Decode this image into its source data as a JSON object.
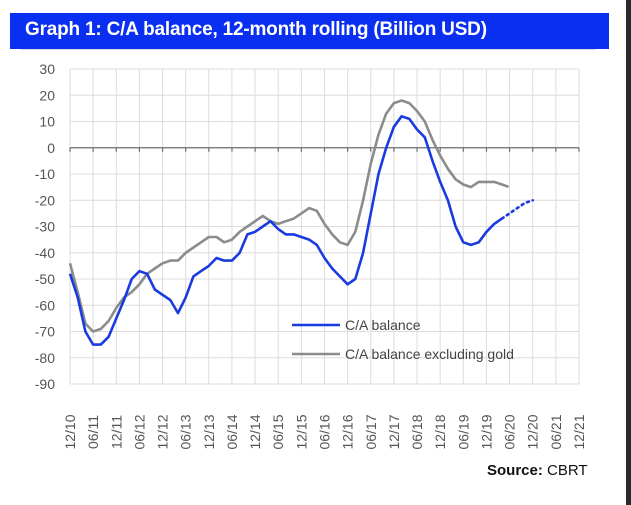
{
  "title": "Graph 1: C/A balance, 12-month rolling (Billion USD)",
  "source": {
    "label": "Source:",
    "value": "CBRT"
  },
  "chart_data": {
    "type": "line",
    "title": "Graph 1: C/A balance, 12-month rolling (Billion USD)",
    "xlabel": "",
    "ylabel": "",
    "ylim": [
      -90,
      30
    ],
    "yticks": [
      30,
      20,
      10,
      0,
      -10,
      -20,
      -30,
      -40,
      -50,
      -60,
      -70,
      -80,
      -90
    ],
    "xticks": [
      "12/10",
      "06/11",
      "12/11",
      "06/12",
      "12/12",
      "06/13",
      "12/13",
      "06/14",
      "12/14",
      "06/15",
      "12/15",
      "06/16",
      "12/16",
      "06/17",
      "12/17",
      "06/18",
      "12/18",
      "06/19",
      "12/19",
      "06/20",
      "12/20",
      "06/21",
      "12/21"
    ],
    "xlim_months_from_start": [
      0,
      132
    ],
    "grid": true,
    "legend_position": "bottom-right",
    "colors": {
      "ca_balance": "#1a3be0",
      "ca_ex_gold": "#8c8c8c"
    },
    "x_months_from_dec2010": [
      0,
      2,
      4,
      6,
      8,
      10,
      12,
      14,
      16,
      18,
      20,
      22,
      24,
      26,
      28,
      30,
      32,
      34,
      36,
      38,
      40,
      42,
      44,
      46,
      48,
      50,
      52,
      54,
      56,
      58,
      60,
      62,
      64,
      66,
      68,
      70,
      72,
      74,
      76,
      78,
      80,
      82,
      84,
      86,
      88,
      90,
      92,
      94,
      96,
      98,
      100,
      102,
      104,
      106,
      108,
      110,
      112,
      114,
      116,
      118,
      120,
      122,
      124,
      126
    ],
    "series": [
      {
        "name": "C/A balance",
        "values": [
          -48,
          -57,
          -70,
          -75,
          -75,
          -72,
          -65,
          -58,
          -50,
          -47,
          -48,
          -54,
          -56,
          -58,
          -63,
          -57,
          -49,
          -47,
          -45,
          -42,
          -43,
          -43,
          -40,
          -33,
          -32,
          -30,
          -28,
          -31,
          -33,
          -33,
          -34,
          -35,
          -37,
          -42,
          -46,
          -49,
          -52,
          -50,
          -40,
          -25,
          -10,
          0,
          8,
          12,
          11,
          7,
          4,
          -5,
          -13,
          -20,
          -30,
          -36,
          -37,
          -36,
          -32,
          -29,
          -27,
          null,
          null,
          null,
          null,
          null,
          null,
          null
        ],
        "projected_values": [
          null,
          null,
          null,
          null,
          null,
          null,
          null,
          null,
          null,
          null,
          null,
          null,
          null,
          null,
          null,
          null,
          null,
          null,
          null,
          null,
          null,
          null,
          null,
          null,
          null,
          null,
          null,
          null,
          null,
          null,
          null,
          null,
          null,
          null,
          null,
          null,
          null,
          null,
          null,
          null,
          null,
          null,
          null,
          null,
          null,
          null,
          null,
          null,
          null,
          null,
          null,
          null,
          null,
          null,
          null,
          null,
          -27,
          -25,
          -23,
          -21,
          -20,
          null,
          null,
          null
        ]
      },
      {
        "name": "C/A balance excluding gold",
        "values": [
          -44,
          -55,
          -67,
          -70,
          -69,
          -66,
          -61,
          -57,
          -55,
          -52,
          -48,
          -46,
          -44,
          -43,
          -43,
          -40,
          -38,
          -36,
          -34,
          -34,
          -36,
          -35,
          -32,
          -30,
          -28,
          -26,
          -28,
          -29,
          -28,
          -27,
          -25,
          -23,
          -24,
          -29,
          -33,
          -36,
          -37,
          -32,
          -20,
          -6,
          5,
          13,
          17,
          18,
          17,
          14,
          10,
          3,
          -3,
          -8,
          -12,
          -14,
          -15,
          -13,
          -13,
          -13,
          -14,
          null,
          null,
          null,
          null,
          null,
          null,
          null
        ],
        "projected_values": [
          null,
          null,
          null,
          null,
          null,
          null,
          null,
          null,
          null,
          null,
          null,
          null,
          null,
          null,
          null,
          null,
          null,
          null,
          null,
          null,
          null,
          null,
          null,
          null,
          null,
          null,
          null,
          null,
          null,
          null,
          null,
          null,
          null,
          null,
          null,
          null,
          null,
          null,
          null,
          null,
          null,
          null,
          null,
          null,
          null,
          null,
          null,
          null,
          null,
          null,
          null,
          null,
          null,
          null,
          null,
          null,
          -14,
          -15,
          null,
          null,
          null,
          null,
          null,
          null
        ]
      }
    ]
  }
}
